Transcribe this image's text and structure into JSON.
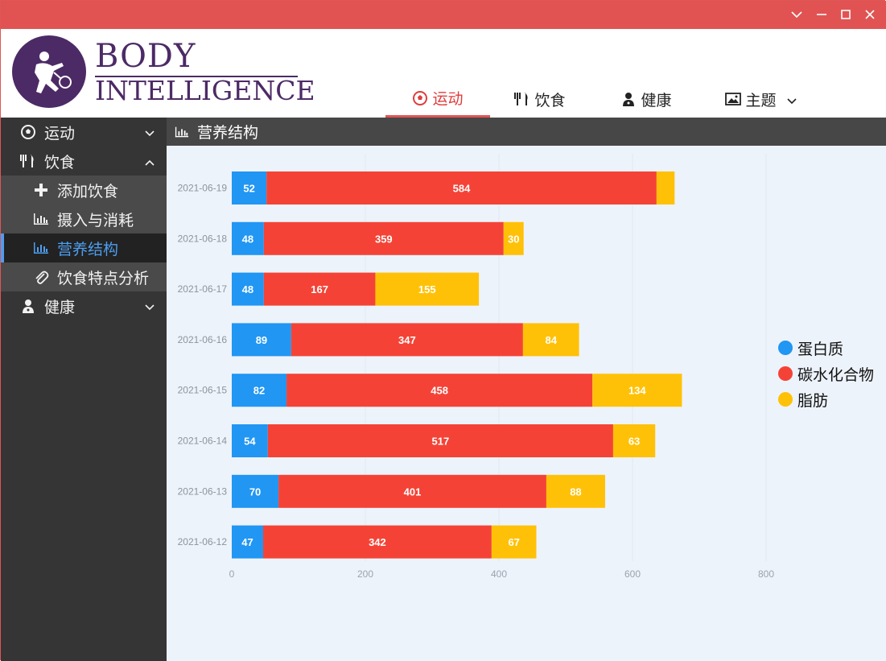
{
  "window": {
    "controls": [
      "chevron-down-icon",
      "minimize-icon",
      "maximize-icon",
      "close-icon"
    ]
  },
  "logo": {
    "line1": "BODY",
    "line2": "INTELLIGENCE"
  },
  "nav": {
    "tabs": [
      {
        "label": "运动",
        "icon": "soccer-ball-icon",
        "active": true
      },
      {
        "label": "饮食",
        "icon": "cutlery-icon",
        "active": false
      },
      {
        "label": "健康",
        "icon": "doctor-icon",
        "active": false
      },
      {
        "label": "主题",
        "icon": "image-icon",
        "active": false,
        "dropdown": true
      }
    ]
  },
  "sidebar": {
    "items": [
      {
        "label": "运动",
        "icon": "soccer-ball-icon",
        "expanded": false
      },
      {
        "label": "饮食",
        "icon": "cutlery-icon",
        "expanded": true
      },
      {
        "label": "添加饮食",
        "icon": "plus-icon"
      },
      {
        "label": "摄入与消耗",
        "icon": "bar-chart-icon"
      },
      {
        "label": "营养结构",
        "icon": "bar-chart-icon",
        "active": true
      },
      {
        "label": "饮食特点分析",
        "icon": "paperclip-icon"
      },
      {
        "label": "健康",
        "icon": "doctor-icon",
        "expanded": false
      }
    ]
  },
  "content": {
    "title": "营养结构"
  },
  "colors": {
    "protein": "#2196f3",
    "carbs": "#f44336",
    "fat": "#ffc107",
    "accent": "#e05555",
    "active_blue": "#4d9ef0"
  },
  "chart_data": {
    "type": "bar",
    "orientation": "horizontal",
    "stacked": true,
    "categories": [
      "2021-06-19",
      "2021-06-18",
      "2021-06-17",
      "2021-06-16",
      "2021-06-15",
      "2021-06-14",
      "2021-06-13",
      "2021-06-12"
    ],
    "series": [
      {
        "name": "蛋白质",
        "color": "#2196f3",
        "values": [
          52,
          48,
          48,
          89,
          82,
          54,
          70,
          47
        ]
      },
      {
        "name": "碳水化合物",
        "color": "#f44336",
        "values": [
          584,
          359,
          167,
          347,
          458,
          517,
          401,
          342
        ]
      },
      {
        "name": "脂肪",
        "color": "#ffc107",
        "values": [
          27,
          30,
          155,
          84,
          134,
          63,
          88,
          67
        ]
      }
    ],
    "value_labels": [
      [
        "52",
        "584",
        ""
      ],
      [
        "48",
        "359",
        "30"
      ],
      [
        "48",
        "167",
        "155"
      ],
      [
        "89",
        "347",
        "84"
      ],
      [
        "82",
        "458",
        "134"
      ],
      [
        "54",
        "517",
        "63"
      ],
      [
        "70",
        "401",
        "88"
      ],
      [
        "47",
        "342",
        "67"
      ]
    ],
    "xlim": [
      0,
      800
    ],
    "xticks": [
      "0",
      "200",
      "400",
      "600",
      "800"
    ],
    "legend_position": "right",
    "grid": true
  }
}
